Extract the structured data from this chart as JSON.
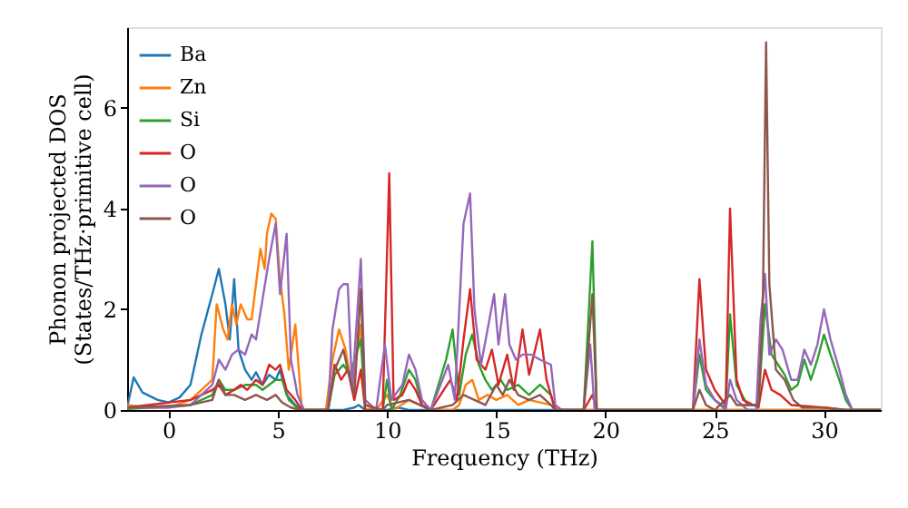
{
  "chart_data": {
    "type": "line",
    "xlabel": "Frequency (THz)",
    "ylabel": "Phonon projected DOS\n(States/THz·primitive cell)",
    "xlim": [
      -1.9,
      32.6
    ],
    "ylim": [
      0,
      7.6
    ],
    "xticks": [
      0,
      5,
      10,
      15,
      20,
      25,
      30
    ],
    "yticks": [
      0,
      2,
      4,
      6
    ],
    "grid": false,
    "legend": "top left",
    "marker": "none",
    "line_style": "solid",
    "series": [
      {
        "name": "Ba",
        "color": "#1f77b4",
        "x": [
          -1.9,
          -1.6,
          -1.2,
          -0.5,
          0,
          0.5,
          1,
          1.5,
          2,
          2.3,
          2.6,
          2.8,
          3.0,
          3.2,
          3.5,
          3.8,
          4,
          4.3,
          4.6,
          4.9,
          5.1,
          5.4,
          5.8,
          6.2,
          8,
          8.5,
          8.7,
          9,
          10,
          10.5,
          11,
          32.6
        ],
        "values": [
          0.05,
          0.65,
          0.35,
          0.2,
          0.15,
          0.25,
          0.5,
          1.5,
          2.3,
          2.8,
          2.1,
          1.4,
          2.6,
          1.2,
          0.8,
          0.6,
          0.75,
          0.5,
          0.7,
          0.6,
          0.8,
          0.3,
          0.1,
          0,
          0,
          0.05,
          0.1,
          0,
          0,
          0.05,
          0,
          0
        ]
      },
      {
        "name": "Zn",
        "color": "#ff7f0e",
        "x": [
          -1.9,
          -1,
          0,
          1,
          1.5,
          2,
          2.2,
          2.5,
          2.7,
          2.9,
          3.1,
          3.3,
          3.6,
          3.8,
          4,
          4.2,
          4.4,
          4.5,
          4.7,
          4.9,
          5.1,
          5.3,
          5.5,
          5.8,
          6.1,
          7.2,
          7.5,
          7.8,
          8.1,
          8.4,
          8.8,
          9.0,
          9.5,
          10,
          10.3,
          11,
          11.5,
          12,
          13,
          13.3,
          13.6,
          13.9,
          14.2,
          14.6,
          15,
          15.5,
          16,
          16.5,
          17,
          17.5,
          18,
          32.6
        ],
        "values": [
          0.1,
          0.05,
          0.05,
          0.2,
          0.4,
          0.6,
          2.1,
          1.6,
          1.4,
          2.1,
          1.7,
          2.1,
          1.8,
          1.8,
          2.5,
          3.2,
          2.8,
          3.5,
          3.9,
          3.8,
          2.6,
          1.9,
          0.8,
          1.7,
          0,
          0,
          1.0,
          1.6,
          1.2,
          0.4,
          1.7,
          0.1,
          0,
          0.3,
          0,
          0.2,
          0.1,
          0,
          0,
          0.1,
          0.5,
          0.6,
          0.2,
          0.3,
          0.2,
          0.3,
          0.1,
          0.2,
          0.15,
          0.1,
          0,
          0
        ]
      },
      {
        "name": "Si",
        "color": "#2ca02c",
        "x": [
          -1.9,
          1,
          2,
          2.3,
          2.6,
          3,
          3.5,
          4,
          4.3,
          4.6,
          4.9,
          5.2,
          5.5,
          6,
          7.3,
          7.6,
          8,
          8.3,
          8.8,
          9,
          9.8,
          10,
          10.2,
          10.6,
          11,
          11.3,
          11.6,
          12,
          12.7,
          13,
          13.3,
          13.6,
          13.9,
          14.2,
          14.5,
          14.8,
          15.2,
          15.5,
          16,
          16.5,
          17,
          17.5,
          17.7,
          19,
          19.4,
          19.6,
          24,
          24.3,
          24.6,
          25,
          25.5,
          25.7,
          26,
          26.5,
          27,
          27.3,
          27.6,
          27.9,
          28.2,
          28.5,
          28.8,
          29.1,
          29.4,
          29.7,
          30,
          30.3,
          30.7,
          31,
          31.3,
          32.6
        ],
        "values": [
          0.02,
          0.1,
          0.3,
          0.6,
          0.4,
          0.4,
          0.5,
          0.5,
          0.4,
          0.5,
          0.6,
          0.6,
          0.2,
          0,
          0,
          0.7,
          0.9,
          0.7,
          1.4,
          0,
          0,
          0.6,
          0,
          0.3,
          0.8,
          0.6,
          0.1,
          0,
          1.0,
          1.6,
          0.3,
          1.1,
          1.5,
          0.9,
          0.6,
          0.4,
          0.6,
          0.4,
          0.5,
          0.3,
          0.5,
          0.3,
          0,
          0,
          3.35,
          0,
          0,
          1.1,
          0.4,
          0.2,
          0.05,
          1.9,
          0.5,
          0.1,
          0.1,
          2.1,
          1.1,
          0.9,
          0.7,
          0.4,
          0.5,
          1.0,
          0.6,
          1.0,
          1.5,
          1.1,
          0.6,
          0.2,
          0,
          0
        ]
      },
      {
        "name": "O",
        "color": "#d62728",
        "x": [
          -1.9,
          1,
          2,
          2.3,
          2.6,
          3,
          3.3,
          3.6,
          4,
          4.3,
          4.6,
          4.9,
          5.1,
          5.4,
          5.8,
          6.1,
          7.3,
          7.6,
          7.9,
          8.2,
          8.5,
          8.8,
          9.0,
          9.8,
          10.1,
          10.3,
          10.7,
          11,
          11.3,
          11.6,
          12,
          12.9,
          13.2,
          13.5,
          13.8,
          14.1,
          14.5,
          14.8,
          15.1,
          15.5,
          15.8,
          16.2,
          16.5,
          17,
          17.3,
          17.7,
          19,
          19.4,
          19.6,
          24,
          24.3,
          24.6,
          25,
          25.5,
          25.7,
          26,
          26.3,
          27,
          27.3,
          27.6,
          28,
          28.5,
          30,
          31,
          32.6
        ],
        "values": [
          0.05,
          0.2,
          0.4,
          0.5,
          0.3,
          0.4,
          0.5,
          0.4,
          0.6,
          0.5,
          0.9,
          0.8,
          0.9,
          0.4,
          0.2,
          0,
          0,
          0.9,
          0.6,
          0.8,
          0.2,
          0.8,
          0,
          0,
          4.7,
          0.2,
          0.3,
          0.6,
          0.4,
          0.1,
          0,
          0.6,
          0.2,
          1.4,
          2.4,
          1.0,
          0.8,
          1.2,
          0.5,
          1.1,
          0.4,
          1.6,
          0.7,
          1.6,
          0.6,
          0,
          0,
          0.3,
          0,
          0,
          2.6,
          0.8,
          0.4,
          0.1,
          4.0,
          0.6,
          0.2,
          0.05,
          0.8,
          0.4,
          0.3,
          0.1,
          0.05,
          0,
          0
        ]
      },
      {
        "name": "O",
        "color": "#9467bd",
        "x": [
          -1.9,
          0,
          1,
          1.5,
          2,
          2.3,
          2.6,
          2.9,
          3.2,
          3.5,
          3.8,
          4,
          4.3,
          4.6,
          4.9,
          5.1,
          5.4,
          5.6,
          5.9,
          6.2,
          7.3,
          7.5,
          7.8,
          8,
          8.2,
          8.4,
          8.8,
          9,
          9.5,
          9.9,
          10.2,
          10.7,
          11,
          11.3,
          11.6,
          12,
          12.8,
          13.1,
          13.5,
          13.8,
          14,
          14.3,
          14.6,
          14.9,
          15.1,
          15.4,
          15.6,
          15.9,
          16.2,
          16.6,
          17,
          17.5,
          17.7,
          18,
          19,
          19.3,
          19.5,
          24,
          24.3,
          24.6,
          25,
          25.5,
          25.7,
          26,
          26.5,
          26.9,
          27.1,
          27.3,
          27.5,
          27.8,
          28.1,
          28.5,
          28.8,
          29.1,
          29.4,
          29.7,
          30,
          30.3,
          30.7,
          31,
          31.3,
          32.6
        ],
        "values": [
          0.05,
          0.05,
          0.1,
          0.3,
          0.5,
          1.0,
          0.8,
          1.1,
          1.2,
          1.1,
          1.5,
          1.4,
          2.2,
          3.0,
          3.7,
          2.3,
          3.5,
          1.0,
          0.3,
          0,
          0,
          1.6,
          2.4,
          2.5,
          2.5,
          0.4,
          3.0,
          0.2,
          0,
          1.3,
          0.2,
          0.5,
          1.1,
          0.8,
          0.2,
          0,
          0.9,
          0.2,
          3.7,
          4.3,
          2.0,
          0.9,
          1.6,
          2.3,
          1.3,
          2.3,
          1.3,
          1.0,
          1.1,
          1.1,
          1.0,
          0.9,
          0.1,
          0,
          0,
          1.3,
          0,
          0,
          1.4,
          0.5,
          0.2,
          0,
          0.6,
          0.2,
          0,
          0,
          1.8,
          2.7,
          1.1,
          1.4,
          1.2,
          0.6,
          0.6,
          1.2,
          0.9,
          1.3,
          2.0,
          1.4,
          0.8,
          0.3,
          0,
          0
        ]
      },
      {
        "name": "O",
        "color": "#8c564b",
        "x": [
          -1.9,
          1,
          2,
          2.3,
          2.6,
          3,
          3.5,
          4,
          4.5,
          4.9,
          5.2,
          5.6,
          6,
          7.3,
          7.6,
          8,
          8.2,
          8.5,
          8.8,
          9,
          9.8,
          10,
          11,
          11.5,
          12,
          13,
          13.5,
          14,
          14.5,
          15,
          15.3,
          15.6,
          16,
          16.5,
          17,
          17.5,
          17.7,
          19,
          19.4,
          19.6,
          24,
          24.3,
          24.6,
          25,
          25.7,
          26,
          27,
          27.2,
          27.35,
          27.5,
          27.8,
          28.2,
          28.6,
          29,
          30,
          31,
          32.6
        ],
        "values": [
          0.05,
          0.1,
          0.2,
          0.6,
          0.3,
          0.3,
          0.2,
          0.3,
          0.2,
          0.3,
          0.15,
          0.05,
          0,
          0,
          0.8,
          1.2,
          0.8,
          0.3,
          2.4,
          0.1,
          0,
          0.1,
          0.2,
          0.1,
          0,
          0.1,
          0.3,
          0.2,
          0.1,
          0.5,
          0.3,
          0.6,
          0.3,
          0.2,
          0.3,
          0.1,
          0,
          0,
          2.3,
          0,
          0,
          0.4,
          0.1,
          0,
          0.3,
          0.1,
          0.1,
          2.0,
          7.3,
          2.5,
          0.8,
          0.6,
          0.2,
          0.05,
          0.05,
          0,
          0
        ]
      }
    ]
  }
}
